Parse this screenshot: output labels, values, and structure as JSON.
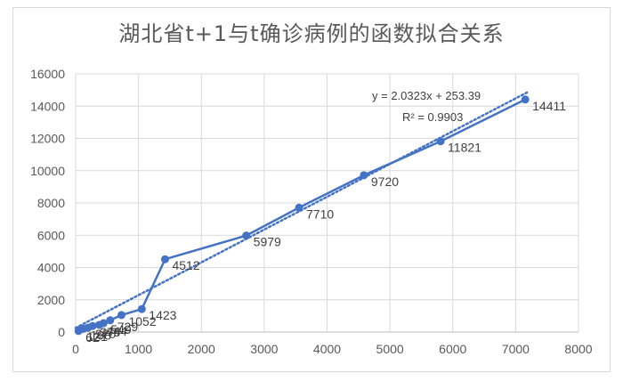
{
  "chart_data": {
    "type": "scatter",
    "title": "湖北省t+1与t确诊病例的函数拟合关系",
    "xlim": [
      0,
      8000
    ],
    "ylim": [
      0,
      16000
    ],
    "x_ticks": [
      0,
      1000,
      2000,
      3000,
      4000,
      5000,
      6000,
      7000,
      8000
    ],
    "y_ticks": [
      0,
      2000,
      4000,
      6000,
      8000,
      10000,
      12000,
      14000,
      16000
    ],
    "grid": true,
    "series": [
      {
        "color": "#4472c4",
        "x": [
          45,
          62,
          121,
          198,
          270,
          375,
          444,
          549,
          729,
          1052,
          1423,
          2714,
          3554,
          4586,
          5806,
          7153
        ],
        "y": [
          62,
          121,
          198,
          270,
          375,
          444,
          549,
          729,
          1052,
          1423,
          4512,
          5979,
          7710,
          9720,
          11821,
          14411
        ],
        "labels": [
          "62",
          "121",
          "198",
          "270",
          "375",
          "444",
          "549",
          "729",
          "1052",
          "1423",
          "4512",
          "5979",
          "7710",
          "9720",
          "11821",
          "14411"
        ],
        "shown_labels": [
          "62",
          "121",
          "198",
          "270",
          "375",
          "444",
          "549",
          "729",
          "1052",
          "1423",
          "4512",
          "5979",
          "7710",
          "9720",
          "11821",
          "14411"
        ]
      }
    ],
    "trendline": {
      "type": "linear",
      "slope": 2.0323,
      "intercept": 253.39,
      "color": "#4472c4",
      "style": "dotted",
      "equation": "y = 2.0323x + 253.39",
      "r_squared": "R² = 0.9903"
    }
  }
}
